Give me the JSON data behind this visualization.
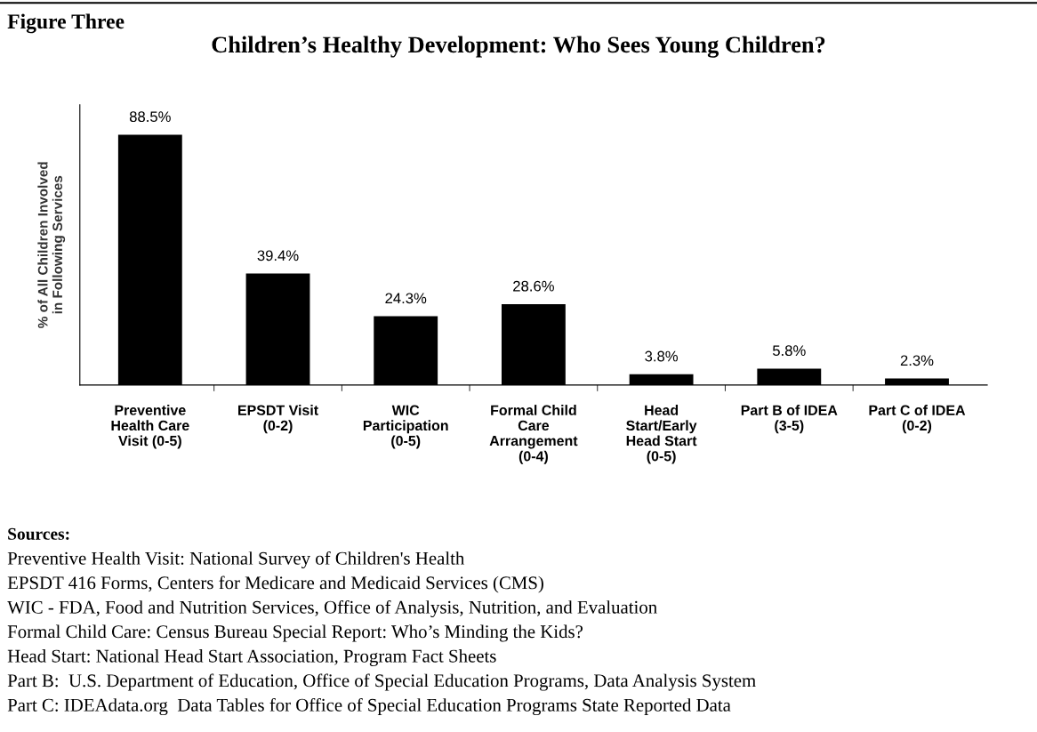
{
  "chart_data": {
    "type": "bar",
    "title": "Children’s Healthy Development: Who Sees Young Children?",
    "ylabel": "% of All Children Involved\nin Following Services",
    "categories": [
      "Preventive\nHealth Care\nVisit (0-5)",
      "EPSDT Visit\n(0-2)",
      "WIC\nParticipation\n(0-5)",
      "Formal Child\nCare\nArrangement\n(0-4)",
      "Head\nStart/Early\nHead Start\n(0-5)",
      "Part B of IDEA\n(3-5)",
      "Part C of IDEA\n(0-2)"
    ],
    "values": [
      88.5,
      39.4,
      24.3,
      28.6,
      3.8,
      5.8,
      2.3
    ],
    "value_labels": [
      "88.5%",
      "39.4%",
      "24.3%",
      "28.6%",
      "3.8%",
      "5.8%",
      "2.3%"
    ],
    "color": "#000000",
    "tick_labels": "x",
    "grid": false,
    "legend": false,
    "annotations": [
      "Figure Three",
      "Sources:",
      "Preventive Health Visit: National Survey of Children's Health",
      "EPSDT 416 Forms, Centers for Medicare and Medicaid Services (CMS)",
      "WIC - FDA, Food and Nutrition Services, Office of Analysis, Nutrition, and Evaluation",
      "Formal Child Care: Census Bureau Special Report: Who’s Minding the Kids?",
      "Head Start: National Head Start Association, Program Fact Sheets",
      "Part B:  U.S. Department of Education, Office of Special Education Programs, Data Analysis System",
      "Part C: IDEAdata.org  Data Tables for Office of Special Education Programs State Reported Data"
    ]
  }
}
